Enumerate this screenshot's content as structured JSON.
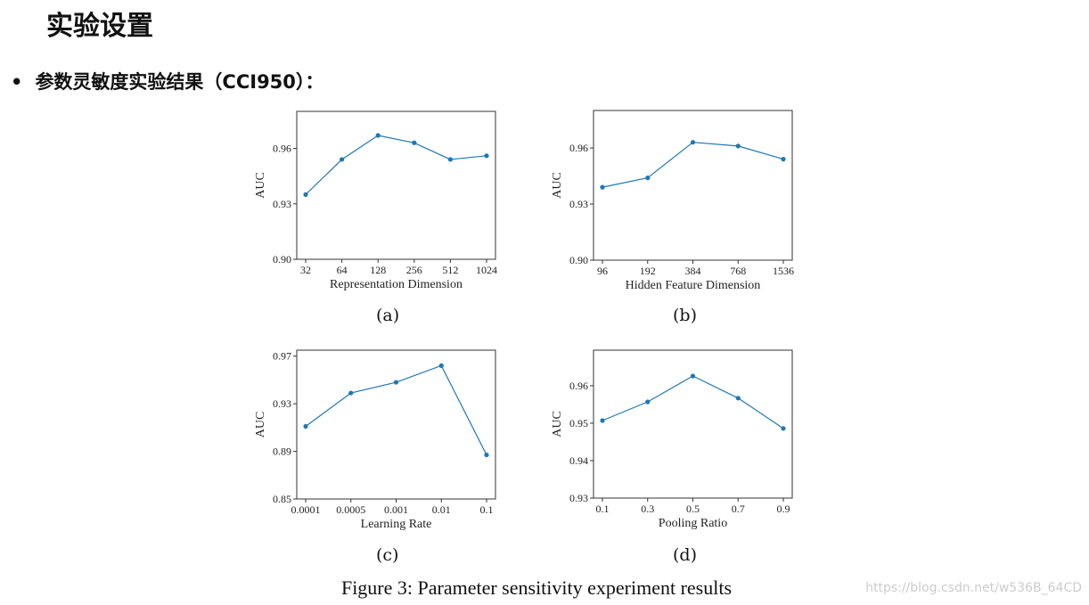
{
  "slide": {
    "title": "实验设置",
    "bullet": "参数灵敏度实验结果（CCI950）：",
    "figure_caption": "Figure 3: Parameter sensitivity experiment results",
    "watermark": "https://blog.csdn.net/w536B_64CD"
  },
  "colors": {
    "line": "#1f77b4",
    "axis": "#333333"
  },
  "chart_data": [
    {
      "type": "line",
      "caption": "(a)",
      "xlabel": "Representation Dimension",
      "ylabel": "AUC",
      "categories": [
        "32",
        "64",
        "128",
        "256",
        "512",
        "1024"
      ],
      "values": [
        0.935,
        0.954,
        0.967,
        0.963,
        0.954,
        0.956
      ],
      "ylim": [
        0.9,
        0.98
      ],
      "yticks": [
        0.9,
        0.93,
        0.96
      ],
      "ytick_labels": [
        "0.90",
        "0.93",
        "0.96"
      ],
      "grid": false
    },
    {
      "type": "line",
      "caption": "(b)",
      "xlabel": "Hidden Feature Dimension",
      "ylabel": "AUC",
      "categories": [
        "96",
        "192",
        "384",
        "768",
        "1536"
      ],
      "values": [
        0.939,
        0.944,
        0.963,
        0.961,
        0.954
      ],
      "ylim": [
        0.9,
        0.98
      ],
      "yticks": [
        0.9,
        0.93,
        0.96
      ],
      "ytick_labels": [
        "0.90",
        "0.93",
        "0.96"
      ],
      "grid": false
    },
    {
      "type": "line",
      "caption": "(c)",
      "xlabel": "Learning Rate",
      "ylabel": "AUC",
      "categories": [
        "0.0001",
        "0.0005",
        "0.001",
        "0.01",
        "0.1"
      ],
      "values": [
        0.911,
        0.939,
        0.948,
        0.962,
        0.887
      ],
      "ylim": [
        0.85,
        0.975
      ],
      "yticks": [
        0.85,
        0.89,
        0.93,
        0.97
      ],
      "ytick_labels": [
        "0.85",
        "0.89",
        "0.93",
        "0.97"
      ],
      "grid": false
    },
    {
      "type": "line",
      "caption": "(d)",
      "xlabel": "Pooling Ratio",
      "ylabel": "AUC",
      "categories": [
        "0.1",
        "0.3",
        "0.5",
        "0.7",
        "0.9"
      ],
      "values": [
        0.9507,
        0.9557,
        0.9626,
        0.9567,
        0.9486
      ],
      "ylim": [
        0.93,
        0.9695
      ],
      "yticks": [
        0.93,
        0.94,
        0.95,
        0.96
      ],
      "ytick_labels": [
        "0.93",
        "0.94",
        "0.95",
        "0.96"
      ],
      "grid": false
    }
  ]
}
